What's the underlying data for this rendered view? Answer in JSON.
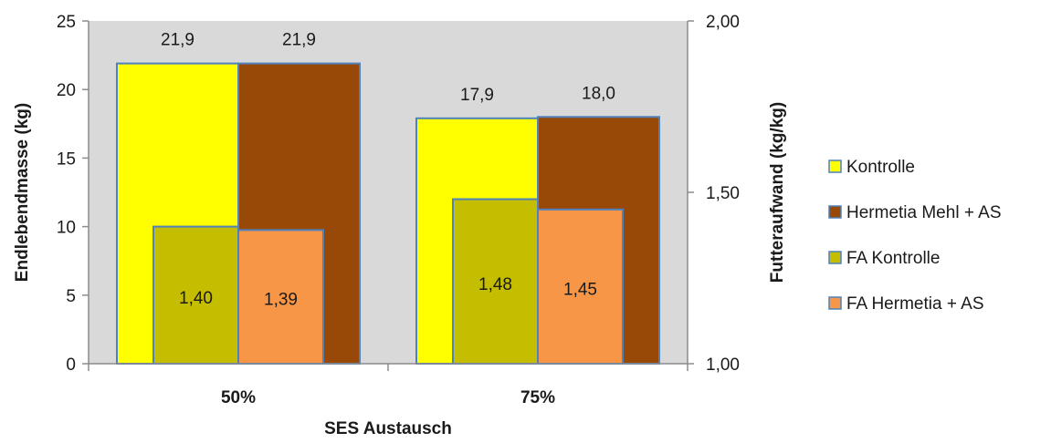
{
  "chart_data": {
    "type": "bar",
    "categories": [
      "50%",
      "75%"
    ],
    "xlabel": "SES Austausch",
    "ylabel": "Endlebendmasse (kg)",
    "y2label": "Futteraufwand (kg/kg)",
    "ylim": [
      0,
      25
    ],
    "y_ticks": [
      "0",
      "5",
      "10",
      "15",
      "20",
      "25"
    ],
    "y2lim": [
      1.0,
      2.0
    ],
    "y2_ticks": [
      "1,00",
      "1,50",
      "2,00"
    ],
    "grid": false,
    "plot_background": "#d9d9d9",
    "legend_position": "right",
    "series": [
      {
        "name": "Kontrolle",
        "axis": "primary",
        "group": "back",
        "values": [
          21.9,
          17.9
        ],
        "labels": [
          "21,9",
          "17,9"
        ],
        "color": "#ffff00"
      },
      {
        "name": "Hermetia Mehl + AS",
        "axis": "primary",
        "group": "back",
        "values": [
          21.9,
          18.0
        ],
        "labels": [
          "21,9",
          "18,0"
        ],
        "color": "#984807"
      },
      {
        "name": "FA Kontrolle",
        "axis": "secondary",
        "group": "front",
        "values": [
          1.4,
          1.48
        ],
        "labels": [
          "1,40",
          "1,48"
        ],
        "color": "#c4bd00"
      },
      {
        "name": "FA Hermetia + AS",
        "axis": "secondary",
        "group": "front",
        "values": [
          1.39,
          1.45
        ],
        "labels": [
          "1,39",
          "1,45"
        ],
        "color": "#f79646"
      }
    ],
    "border_color": "#4f81bd"
  }
}
